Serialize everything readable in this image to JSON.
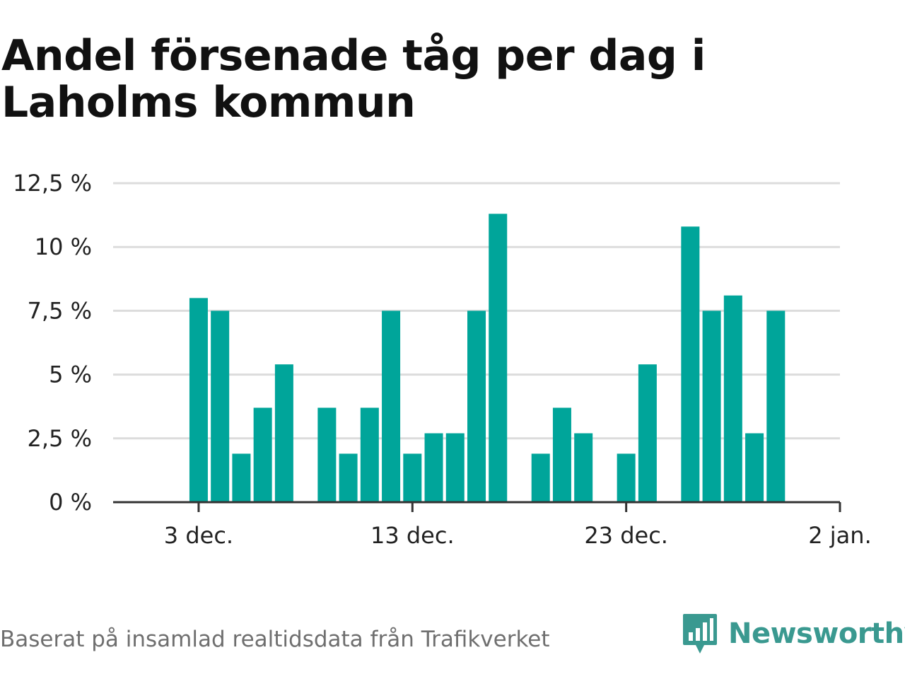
{
  "chart_data": {
    "type": "bar",
    "title": "Andel försenade tåg per dag i Laholms kommun",
    "xlabel": "",
    "ylabel": "",
    "ylim": [
      0,
      12.5
    ],
    "yticks": [
      0,
      2.5,
      5,
      7.5,
      10,
      12.5
    ],
    "ytick_labels": [
      "0 %",
      "2,5 %",
      "5 %",
      "7,5 %",
      "10 %",
      "12,5 %"
    ],
    "xlim": [
      "2024-11-29",
      "2025-01-02"
    ],
    "xticks": [
      "2024-12-03",
      "2024-12-13",
      "2024-12-23",
      "2025-01-02"
    ],
    "xtick_labels": [
      "3 dec.",
      "13 dec.",
      "23 dec.",
      "2 jan."
    ],
    "grid": true,
    "legend": "none",
    "bar_color": "#00a59a",
    "x": [
      "2024-12-03",
      "2024-12-04",
      "2024-12-05",
      "2024-12-06",
      "2024-12-07",
      "2024-12-08",
      "2024-12-09",
      "2024-12-10",
      "2024-12-11",
      "2024-12-12",
      "2024-12-13",
      "2024-12-14",
      "2024-12-15",
      "2024-12-16",
      "2024-12-17",
      "2024-12-18",
      "2024-12-19",
      "2024-12-20",
      "2024-12-21",
      "2024-12-22",
      "2024-12-23",
      "2024-12-24",
      "2024-12-25",
      "2024-12-26",
      "2024-12-27",
      "2024-12-28",
      "2024-12-29",
      "2024-12-30",
      "2024-12-31"
    ],
    "values": [
      8.0,
      7.5,
      1.9,
      3.7,
      5.4,
      0,
      3.7,
      1.9,
      3.7,
      7.5,
      1.9,
      2.7,
      2.7,
      7.5,
      11.3,
      0,
      1.9,
      3.7,
      2.7,
      0,
      1.9,
      5.4,
      0,
      10.8,
      7.5,
      8.1,
      2.7,
      7.5,
      0
    ]
  },
  "footer": {
    "source": "Baserat på insamlad realtidsdata från Trafikverket",
    "brand": "Newsworthy",
    "brand_icon": "newsworthy-chart-bubble-icon",
    "brand_color": "#3a9990"
  }
}
